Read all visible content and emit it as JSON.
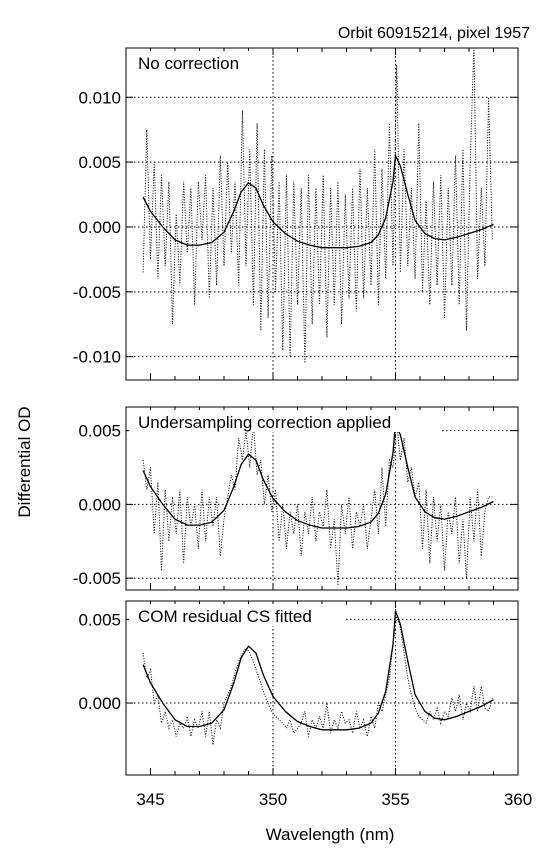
{
  "figure": {
    "title": "Orbit 60915214, pixel 1957",
    "ylabel": "Differential OD",
    "xlabel": "Wavelength (nm)"
  },
  "chart_data": [
    {
      "type": "line",
      "title": "No correction",
      "ylim": [
        -0.0118,
        0.0138
      ],
      "yticks": [
        -0.01,
        -0.005,
        0.0,
        0.005,
        0.01
      ],
      "ytick_labels": [
        "-0.010",
        "-0.005",
        "0.000",
        "0.005",
        "0.010"
      ],
      "xlim": [
        344,
        360
      ],
      "grid": true,
      "series": [
        {
          "style": "solid",
          "x": [
            344.7,
            345.0,
            345.5,
            346.0,
            346.5,
            347.0,
            347.5,
            348.0,
            348.4,
            348.7,
            349.0,
            349.3,
            349.6,
            350.0,
            350.5,
            351.0,
            351.5,
            352.0,
            352.5,
            353.0,
            353.5,
            354.0,
            354.3,
            354.6,
            354.9,
            355.0,
            355.2,
            355.5,
            355.8,
            356.2,
            356.6,
            357.0,
            357.5,
            358.0,
            358.5,
            359.0
          ],
          "y": [
            0.0023,
            0.0012,
            0.0,
            -0.001,
            -0.0014,
            -0.0014,
            -0.0012,
            -0.0004,
            0.0012,
            0.0027,
            0.0034,
            0.003,
            0.0017,
            0.0004,
            -0.0005,
            -0.0011,
            -0.0014,
            -0.0016,
            -0.0016,
            -0.0016,
            -0.0015,
            -0.0012,
            -0.0006,
            0.0007,
            0.0035,
            0.0055,
            0.0047,
            0.0025,
            0.0005,
            -0.0005,
            -0.0009,
            -0.001,
            -0.0008,
            -0.0005,
            -0.0002,
            0.0002
          ]
        },
        {
          "style": "dotted",
          "x": [
            344.7,
            344.85,
            345.0,
            345.15,
            345.3,
            345.45,
            345.6,
            345.75,
            345.9,
            346.05,
            346.2,
            346.35,
            346.5,
            346.65,
            346.8,
            346.95,
            347.1,
            347.25,
            347.4,
            347.55,
            347.7,
            347.85,
            348.0,
            348.15,
            348.3,
            348.45,
            348.6,
            348.75,
            348.9,
            349.05,
            349.2,
            349.35,
            349.5,
            349.65,
            349.8,
            349.95,
            350.1,
            350.25,
            350.4,
            350.55,
            350.7,
            350.85,
            351.0,
            351.15,
            351.3,
            351.45,
            351.6,
            351.75,
            351.9,
            352.05,
            352.2,
            352.35,
            352.5,
            352.65,
            352.8,
            352.95,
            353.1,
            353.25,
            353.4,
            353.55,
            353.7,
            353.85,
            354.0,
            354.15,
            354.3,
            354.45,
            354.6,
            354.75,
            354.9,
            355.05,
            355.2,
            355.35,
            355.5,
            355.65,
            355.8,
            355.95,
            356.1,
            356.25,
            356.4,
            356.55,
            356.7,
            356.85,
            357.0,
            357.15,
            357.3,
            357.45,
            357.6,
            357.75,
            357.9,
            358.05,
            358.2,
            358.35,
            358.5,
            358.65,
            358.8,
            358.95
          ],
          "y": [
            -0.0035,
            0.0075,
            -0.0025,
            0.005,
            -0.004,
            0.004,
            -0.003,
            0.0035,
            -0.0075,
            0.001,
            -0.0045,
            0.0035,
            -0.002,
            0.003,
            -0.006,
            0.0035,
            -0.001,
            0.004,
            -0.0055,
            0.003,
            -0.0045,
            0.0055,
            -0.003,
            0.005,
            -0.002,
            0.0035,
            -0.0045,
            0.009,
            -0.003,
            0.006,
            -0.006,
            0.008,
            -0.008,
            0.006,
            -0.007,
            0.0055,
            -0.005,
            0.0035,
            -0.0095,
            0.004,
            -0.01,
            0.0035,
            -0.006,
            0.003,
            -0.0105,
            0.004,
            -0.0075,
            0.003,
            -0.006,
            0.004,
            -0.0085,
            0.003,
            -0.006,
            0.0035,
            -0.0075,
            0.0025,
            -0.0055,
            0.003,
            -0.0065,
            0.0045,
            -0.0055,
            0.003,
            -0.0045,
            0.006,
            -0.006,
            0.0045,
            -0.004,
            0.008,
            -0.003,
            0.0125,
            -0.0035,
            0.006,
            -0.003,
            0.003,
            -0.004,
            0.008,
            -0.005,
            0.002,
            -0.006,
            0.0035,
            -0.0045,
            0.004,
            -0.007,
            0.003,
            -0.0045,
            0.0055,
            -0.006,
            0.006,
            -0.008,
            0.005,
            0.014,
            -0.004,
            0.003,
            -0.003,
            0.01,
            -0.001
          ]
        }
      ]
    },
    {
      "type": "line",
      "title": "Undersampling correction applied",
      "ylim": [
        -0.0058,
        0.0066
      ],
      "yticks": [
        -0.005,
        0.0,
        0.005
      ],
      "ytick_labels": [
        "-0.005",
        "0.000",
        "0.005"
      ],
      "xlim": [
        344,
        360
      ],
      "grid": true,
      "series": [
        {
          "style": "solid",
          "x": [
            344.7,
            345.0,
            345.5,
            346.0,
            346.5,
            347.0,
            347.5,
            348.0,
            348.4,
            348.7,
            349.0,
            349.3,
            349.6,
            350.0,
            350.5,
            351.0,
            351.5,
            352.0,
            352.5,
            353.0,
            353.5,
            354.0,
            354.3,
            354.6,
            354.9,
            355.0,
            355.2,
            355.5,
            355.8,
            356.2,
            356.6,
            357.0,
            357.5,
            358.0,
            358.5,
            359.0
          ],
          "y": [
            0.0023,
            0.0012,
            0.0,
            -0.001,
            -0.0014,
            -0.0014,
            -0.0012,
            -0.0004,
            0.0012,
            0.0027,
            0.0034,
            0.003,
            0.0017,
            0.0004,
            -0.0005,
            -0.0011,
            -0.0014,
            -0.0016,
            -0.0016,
            -0.0016,
            -0.0015,
            -0.0012,
            -0.0006,
            0.0007,
            0.0035,
            0.0055,
            0.0047,
            0.0025,
            0.0005,
            -0.0005,
            -0.0009,
            -0.001,
            -0.0008,
            -0.0005,
            -0.0002,
            0.0002
          ]
        },
        {
          "style": "dotted",
          "x": [
            344.7,
            344.85,
            345.0,
            345.15,
            345.3,
            345.45,
            345.6,
            345.75,
            345.9,
            346.05,
            346.2,
            346.35,
            346.5,
            346.65,
            346.8,
            346.95,
            347.1,
            347.25,
            347.4,
            347.55,
            347.7,
            347.85,
            348.0,
            348.15,
            348.3,
            348.45,
            348.6,
            348.75,
            348.9,
            349.05,
            349.2,
            349.35,
            349.5,
            349.65,
            349.8,
            349.95,
            350.1,
            350.25,
            350.4,
            350.55,
            350.7,
            350.85,
            351.0,
            351.15,
            351.3,
            351.45,
            351.6,
            351.75,
            351.9,
            352.05,
            352.2,
            352.35,
            352.5,
            352.65,
            352.8,
            352.95,
            353.1,
            353.25,
            353.4,
            353.55,
            353.7,
            353.85,
            354.0,
            354.15,
            354.3,
            354.45,
            354.6,
            354.75,
            354.9,
            355.05,
            355.2,
            355.35,
            355.5,
            355.65,
            355.8,
            355.95,
            356.1,
            356.25,
            356.4,
            356.55,
            356.7,
            356.85,
            357.0,
            357.15,
            357.3,
            357.45,
            357.6,
            357.75,
            357.9,
            358.05,
            358.2,
            358.35,
            358.5,
            358.65,
            358.8,
            358.95
          ],
          "y": [
            0.003,
            0.001,
            0.0025,
            -0.002,
            0.0015,
            -0.0045,
            0.001,
            -0.0025,
            0.0005,
            -0.002,
            0.001,
            -0.004,
            0.0005,
            -0.0015,
            0.0,
            -0.003,
            0.001,
            -0.0025,
            0.0005,
            -0.0015,
            0.0005,
            -0.0035,
            -0.001,
            0.0005,
            0.002,
            0.001,
            0.0045,
            0.003,
            0.005,
            0.0025,
            0.0055,
            0.002,
            0.003,
            0.0,
            0.002,
            -0.0005,
            0.001,
            -0.0025,
            0.0,
            -0.003,
            -0.0005,
            -0.002,
            0.0,
            -0.0035,
            -0.0005,
            -0.002,
            0.0005,
            -0.0025,
            -0.0005,
            -0.0015,
            0.001,
            -0.003,
            -0.001,
            -0.0055,
            0.0,
            -0.002,
            0.0005,
            -0.003,
            -0.0005,
            -0.0015,
            0.0,
            -0.003,
            -0.001,
            0.001,
            -0.002,
            0.0025,
            -0.0015,
            0.003,
            0.0025,
            0.0055,
            0.003,
            0.0045,
            0.0015,
            0.0025,
            0.0005,
            0.0015,
            -0.003,
            0.001,
            -0.004,
            0.0005,
            -0.0025,
            0.0,
            -0.0045,
            -0.0005,
            -0.002,
            0.0005,
            -0.004,
            -0.001,
            -0.005,
            0.0005,
            -0.0025,
            0.001,
            -0.0035,
            -0.0005,
            0.0005,
            0.0005
          ]
        }
      ]
    },
    {
      "type": "line",
      "title": "COM residual CS fitted",
      "ylim": [
        -0.0043,
        0.0061
      ],
      "yticks": [
        0.0,
        0.005
      ],
      "ytick_labels": [
        "0.000",
        "0.005"
      ],
      "xlim": [
        344,
        360
      ],
      "xticks": [
        345,
        350,
        355,
        360
      ],
      "xtick_labels": [
        "345",
        "350",
        "355",
        "360"
      ],
      "grid": true,
      "series": [
        {
          "style": "solid",
          "x": [
            344.7,
            345.0,
            345.5,
            346.0,
            346.5,
            347.0,
            347.5,
            348.0,
            348.4,
            348.7,
            349.0,
            349.3,
            349.6,
            350.0,
            350.5,
            351.0,
            351.5,
            352.0,
            352.5,
            353.0,
            353.5,
            354.0,
            354.3,
            354.6,
            354.9,
            355.0,
            355.2,
            355.5,
            355.8,
            356.2,
            356.6,
            357.0,
            357.5,
            358.0,
            358.5,
            359.0
          ],
          "y": [
            0.0023,
            0.0012,
            0.0,
            -0.001,
            -0.0014,
            -0.0014,
            -0.0012,
            -0.0004,
            0.0012,
            0.0027,
            0.0034,
            0.003,
            0.0017,
            0.0004,
            -0.0005,
            -0.0011,
            -0.0014,
            -0.0016,
            -0.0016,
            -0.0016,
            -0.0015,
            -0.0012,
            -0.0006,
            0.0007,
            0.0035,
            0.0055,
            0.0047,
            0.0025,
            0.0005,
            -0.0005,
            -0.0009,
            -0.001,
            -0.0008,
            -0.0005,
            -0.0002,
            0.0002
          ]
        },
        {
          "style": "dotted",
          "x": [
            344.7,
            344.85,
            345.0,
            345.15,
            345.3,
            345.45,
            345.6,
            345.75,
            345.9,
            346.05,
            346.2,
            346.35,
            346.5,
            346.65,
            346.8,
            346.95,
            347.1,
            347.25,
            347.4,
            347.55,
            347.7,
            347.85,
            348.0,
            348.15,
            348.3,
            348.45,
            348.6,
            348.75,
            348.9,
            349.05,
            349.2,
            349.35,
            349.5,
            349.65,
            349.8,
            349.95,
            350.1,
            350.25,
            350.4,
            350.55,
            350.7,
            350.85,
            351.0,
            351.15,
            351.3,
            351.45,
            351.6,
            351.75,
            351.9,
            352.05,
            352.2,
            352.35,
            352.5,
            352.65,
            352.8,
            352.95,
            353.1,
            353.25,
            353.4,
            353.55,
            353.7,
            353.85,
            354.0,
            354.15,
            354.3,
            354.45,
            354.6,
            354.75,
            354.9,
            355.05,
            355.2,
            355.35,
            355.5,
            355.65,
            355.8,
            355.95,
            356.1,
            356.25,
            356.4,
            356.55,
            356.7,
            356.85,
            357.0,
            357.15,
            357.3,
            357.45,
            357.6,
            357.75,
            357.9,
            358.05,
            358.2,
            358.35,
            358.5,
            358.65,
            358.8,
            358.95
          ],
          "y": [
            0.003,
            0.0015,
            0.002,
            0.0,
            0.0005,
            -0.0012,
            -0.0005,
            -0.0015,
            -0.001,
            -0.002,
            -0.0012,
            -0.0015,
            -0.0008,
            -0.002,
            -0.001,
            -0.0015,
            -0.0005,
            -0.002,
            -0.0005,
            -0.0025,
            -0.001,
            -0.0015,
            0.0,
            0.0005,
            0.001,
            0.0018,
            0.0025,
            0.003,
            0.0033,
            0.003,
            0.0025,
            0.0018,
            0.0012,
            0.0005,
            0.0,
            -0.0005,
            -0.0008,
            -0.001,
            -0.0012,
            -0.0015,
            -0.001,
            -0.0018,
            -0.0015,
            -0.0012,
            -0.0005,
            -0.002,
            -0.001,
            -0.0015,
            -0.0008,
            -0.0015,
            0.0,
            -0.0018,
            -0.001,
            -0.0015,
            -0.0005,
            -0.0012,
            -0.001,
            -0.0018,
            -0.0005,
            -0.0015,
            -0.001,
            -0.002,
            -0.0008,
            -0.0015,
            0.0,
            -0.0005,
            0.0005,
            0.0015,
            0.0035,
            0.0052,
            0.0045,
            0.003,
            0.0015,
            0.0005,
            -0.0003,
            -0.0008,
            -0.001,
            -0.0012,
            -0.0005,
            -0.001,
            -0.0003,
            -0.0012,
            -0.0005,
            -0.0008,
            0.0003,
            -0.0005,
            0.0005,
            -0.001,
            0.0,
            -0.0005,
            0.001,
            -0.0005,
            0.001,
            -0.0003,
            -0.0005,
            0.0003
          ]
        }
      ]
    }
  ]
}
